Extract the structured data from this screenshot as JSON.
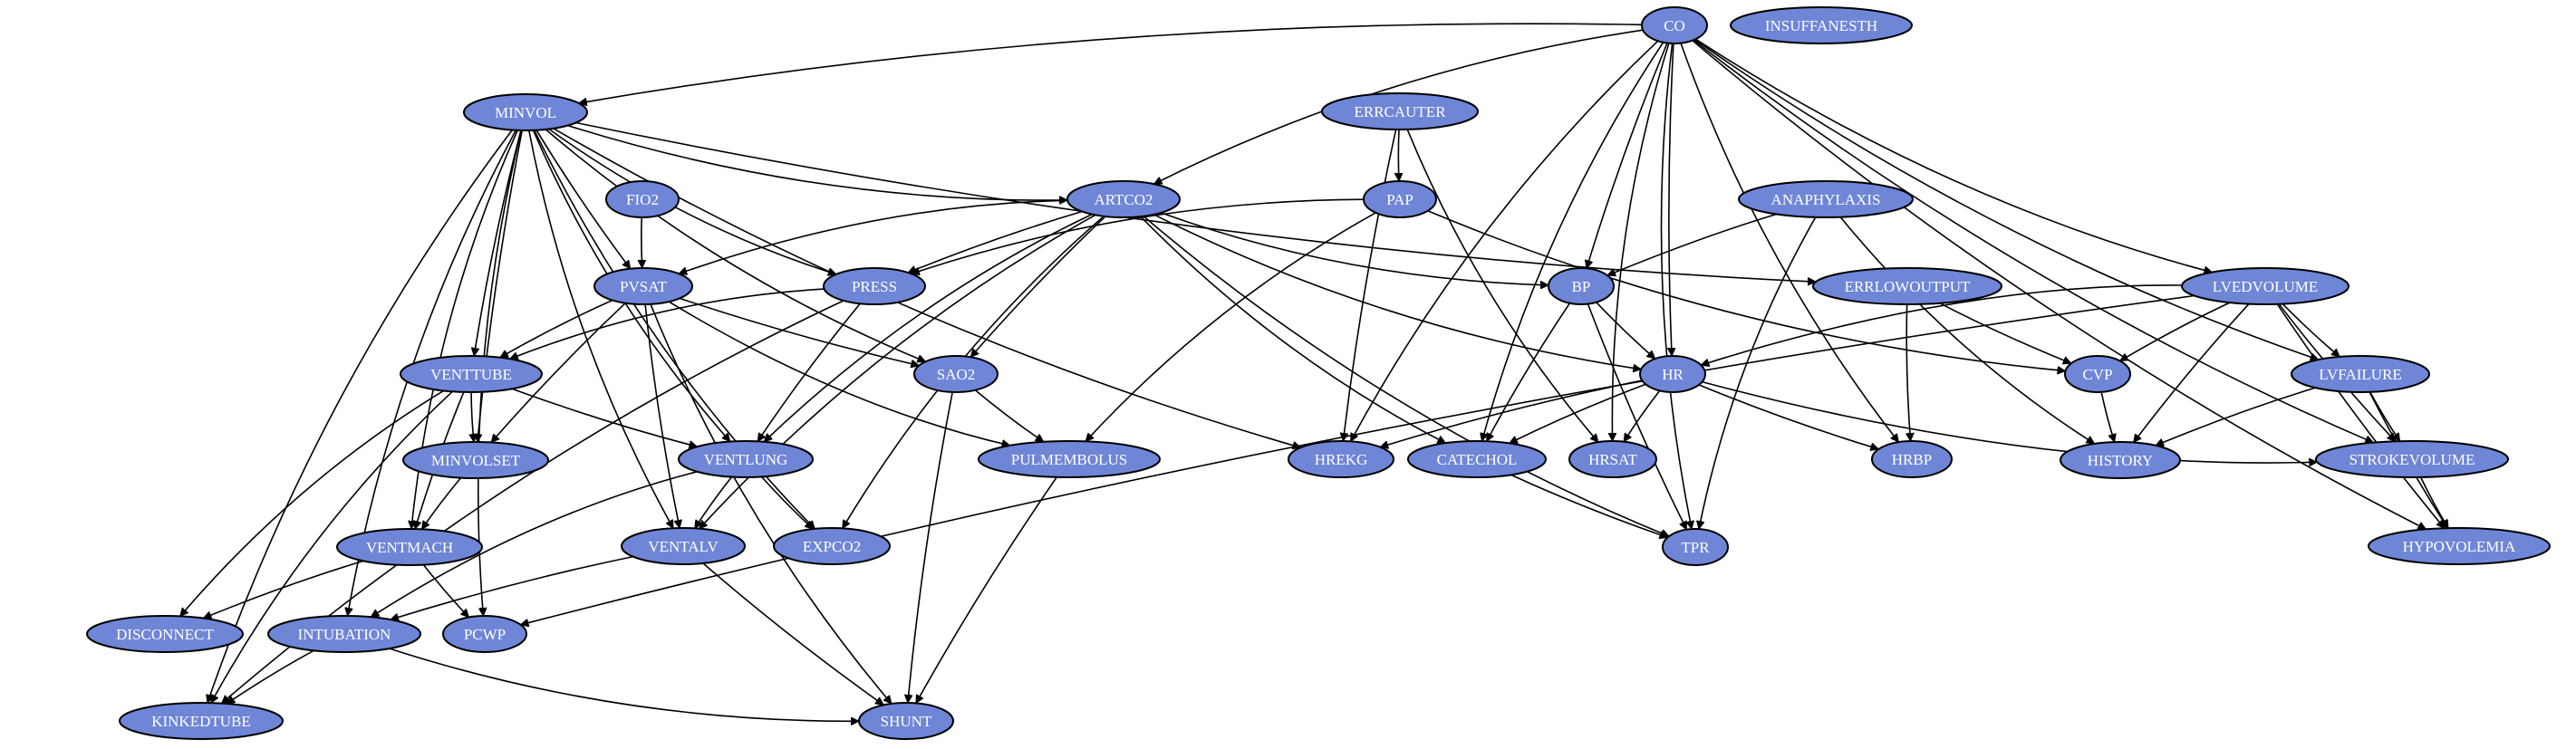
{
  "colors": {
    "node_fill": "#6f86d6",
    "node_stroke": "#000000",
    "label": "#ffffff",
    "edge": "#000000"
  },
  "nodes": [
    {
      "id": "CO",
      "label": "CO"
    },
    {
      "id": "INSUFFANESTH",
      "label": "INSUFFANESTH"
    },
    {
      "id": "MINVOL",
      "label": "MINVOL"
    },
    {
      "id": "ERRCAUTER",
      "label": "ERRCAUTER"
    },
    {
      "id": "FIO2",
      "label": "FIO2"
    },
    {
      "id": "ARTCO2",
      "label": "ARTCO2"
    },
    {
      "id": "PAP",
      "label": "PAP"
    },
    {
      "id": "ANAPHYLAXIS",
      "label": "ANAPHYLAXIS"
    },
    {
      "id": "PVSAT",
      "label": "PVSAT"
    },
    {
      "id": "PRESS",
      "label": "PRESS"
    },
    {
      "id": "BP",
      "label": "BP"
    },
    {
      "id": "ERRLOWOUTPUT",
      "label": "ERRLOWOUTPUT"
    },
    {
      "id": "LVEDVOLUME",
      "label": "LVEDVOLUME"
    },
    {
      "id": "VENTTUBE",
      "label": "VENTTUBE"
    },
    {
      "id": "SAO2",
      "label": "SAO2"
    },
    {
      "id": "HR",
      "label": "HR"
    },
    {
      "id": "CVP",
      "label": "CVP"
    },
    {
      "id": "LVFAILURE",
      "label": "LVFAILURE"
    },
    {
      "id": "MINVOLSET",
      "label": "MINVOLSET"
    },
    {
      "id": "VENTLUNG",
      "label": "VENTLUNG"
    },
    {
      "id": "PULMEMBOLUS",
      "label": "PULMEMBOLUS"
    },
    {
      "id": "HREKG",
      "label": "HREKG"
    },
    {
      "id": "CATECHOL",
      "label": "CATECHOL"
    },
    {
      "id": "HRSAT",
      "label": "HRSAT"
    },
    {
      "id": "HRBP",
      "label": "HRBP"
    },
    {
      "id": "HISTORY",
      "label": "HISTORY"
    },
    {
      "id": "STROKEVOLUME",
      "label": "STROKEVOLUME"
    },
    {
      "id": "VENTMACH",
      "label": "VENTMACH"
    },
    {
      "id": "VENTALV",
      "label": "VENTALV"
    },
    {
      "id": "EXPCO2",
      "label": "EXPCO2"
    },
    {
      "id": "TPR",
      "label": "TPR"
    },
    {
      "id": "HYPOVOLEMIA",
      "label": "HYPOVOLEMIA"
    },
    {
      "id": "DISCONNECT",
      "label": "DISCONNECT"
    },
    {
      "id": "INTUBATION",
      "label": "INTUBATION"
    },
    {
      "id": "PCWP",
      "label": "PCWP"
    },
    {
      "id": "KINKEDTUBE",
      "label": "KINKEDTUBE"
    },
    {
      "id": "SHUNT",
      "label": "SHUNT"
    }
  ],
  "edges": [
    [
      "CO",
      "MINVOL"
    ],
    [
      "CO",
      "ARTCO2"
    ],
    [
      "CO",
      "HREKG"
    ],
    [
      "CO",
      "CATECHOL"
    ],
    [
      "CO",
      "HRSAT"
    ],
    [
      "CO",
      "BP"
    ],
    [
      "CO",
      "HR"
    ],
    [
      "CO",
      "HRBP"
    ],
    [
      "CO",
      "TPR"
    ],
    [
      "CO",
      "LVEDVOLUME"
    ],
    [
      "CO",
      "LVFAILURE"
    ],
    [
      "CO",
      "STROKEVOLUME"
    ],
    [
      "CO",
      "HYPOVOLEMIA"
    ],
    [
      "MINVOL",
      "ARTCO2"
    ],
    [
      "MINVOL",
      "PVSAT"
    ],
    [
      "MINVOL",
      "PRESS"
    ],
    [
      "MINVOL",
      "SAO2"
    ],
    [
      "MINVOL",
      "VENTLUNG"
    ],
    [
      "MINVOL",
      "VENTTUBE"
    ],
    [
      "MINVOL",
      "MINVOLSET"
    ],
    [
      "MINVOL",
      "ERRLOWOUTPUT"
    ],
    [
      "MINVOL",
      "HREKG"
    ],
    [
      "MINVOL",
      "EXPCO2"
    ],
    [
      "MINVOL",
      "VENTALV"
    ],
    [
      "MINVOL",
      "VENTMACH"
    ],
    [
      "MINVOL",
      "PCWP"
    ],
    [
      "MINVOL",
      "INTUBATION"
    ],
    [
      "MINVOL",
      "KINKEDTUBE"
    ],
    [
      "FIO2",
      "PVSAT"
    ],
    [
      "ERRCAUTER",
      "PAP"
    ],
    [
      "ERRCAUTER",
      "HREKG"
    ],
    [
      "ERRCAUTER",
      "HRSAT"
    ],
    [
      "ARTCO2",
      "PVSAT"
    ],
    [
      "ARTCO2",
      "PRESS"
    ],
    [
      "ARTCO2",
      "SAO2"
    ],
    [
      "ARTCO2",
      "VENTLUNG"
    ],
    [
      "ARTCO2",
      "VENTALV"
    ],
    [
      "ARTCO2",
      "EXPCO2"
    ],
    [
      "ARTCO2",
      "TPR"
    ],
    [
      "ARTCO2",
      "CATECHOL"
    ],
    [
      "ARTCO2",
      "BP"
    ],
    [
      "ARTCO2",
      "HR"
    ],
    [
      "PAP",
      "PRESS"
    ],
    [
      "PAP",
      "PULMEMBOLUS"
    ],
    [
      "PAP",
      "CVP"
    ],
    [
      "ANAPHYLAXIS",
      "BP"
    ],
    [
      "ANAPHYLAXIS",
      "TPR"
    ],
    [
      "ANAPHYLAXIS",
      "HISTORY"
    ],
    [
      "PVSAT",
      "VENTTUBE"
    ],
    [
      "PVSAT",
      "MINVOLSET"
    ],
    [
      "PVSAT",
      "SAO2"
    ],
    [
      "PVSAT",
      "PULMEMBOLUS"
    ],
    [
      "PVSAT",
      "VENTALV"
    ],
    [
      "PVSAT",
      "SHUNT"
    ],
    [
      "PRESS",
      "VENTTUBE"
    ],
    [
      "PRESS",
      "VENTLUNG"
    ],
    [
      "PRESS",
      "KINKEDTUBE"
    ],
    [
      "BP",
      "HR"
    ],
    [
      "BP",
      "CATECHOL"
    ],
    [
      "BP",
      "TPR"
    ],
    [
      "ERRLOWOUTPUT",
      "HRBP"
    ],
    [
      "ERRLOWOUTPUT",
      "CVP"
    ],
    [
      "LVEDVOLUME",
      "HR"
    ],
    [
      "LVEDVOLUME",
      "CVP"
    ],
    [
      "LVEDVOLUME",
      "LVFAILURE"
    ],
    [
      "LVEDVOLUME",
      "HISTORY"
    ],
    [
      "LVEDVOLUME",
      "STROKEVOLUME"
    ],
    [
      "LVEDVOLUME",
      "HYPOVOLEMIA"
    ],
    [
      "LVEDVOLUME",
      "PCWP"
    ],
    [
      "VENTTUBE",
      "MINVOLSET"
    ],
    [
      "VENTTUBE",
      "VENTLUNG"
    ],
    [
      "VENTTUBE",
      "VENTMACH"
    ],
    [
      "VENTTUBE",
      "DISCONNECT"
    ],
    [
      "VENTTUBE",
      "KINKEDTUBE"
    ],
    [
      "SAO2",
      "PULMEMBOLUS"
    ],
    [
      "SAO2",
      "SHUNT"
    ],
    [
      "HR",
      "HREKG"
    ],
    [
      "HR",
      "CATECHOL"
    ],
    [
      "HR",
      "HRSAT"
    ],
    [
      "HR",
      "HRBP"
    ],
    [
      "HR",
      "STROKEVOLUME"
    ],
    [
      "CVP",
      "HISTORY"
    ],
    [
      "LVFAILURE",
      "HISTORY"
    ],
    [
      "LVFAILURE",
      "STROKEVOLUME"
    ],
    [
      "LVFAILURE",
      "HYPOVOLEMIA"
    ],
    [
      "MINVOLSET",
      "VENTMACH"
    ],
    [
      "VENTLUNG",
      "VENTALV"
    ],
    [
      "VENTLUNG",
      "EXPCO2"
    ],
    [
      "VENTLUNG",
      "INTUBATION"
    ],
    [
      "PULMEMBOLUS",
      "SHUNT"
    ],
    [
      "CATECHOL",
      "TPR"
    ],
    [
      "STROKEVOLUME",
      "HYPOVOLEMIA"
    ],
    [
      "VENTMACH",
      "DISCONNECT"
    ],
    [
      "VENTMACH",
      "PCWP"
    ],
    [
      "VENTALV",
      "INTUBATION"
    ],
    [
      "VENTALV",
      "SHUNT"
    ],
    [
      "INTUBATION",
      "KINKEDTUBE"
    ],
    [
      "INTUBATION",
      "SHUNT"
    ]
  ]
}
